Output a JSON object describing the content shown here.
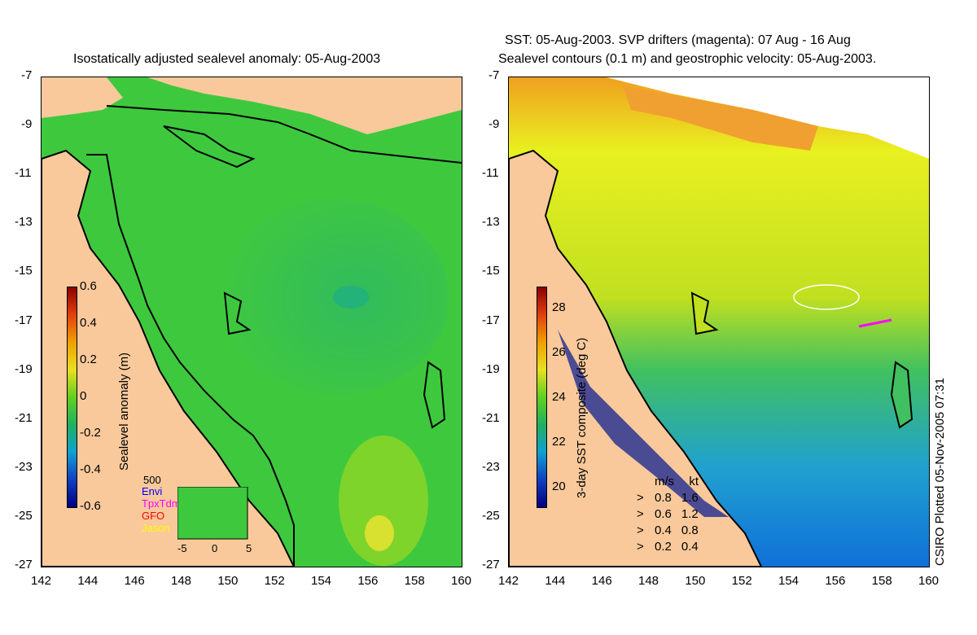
{
  "left_map": {
    "title": "Isostatically adjusted sealevel anomaly: 05-Aug-2003",
    "colorbar": {
      "label": "Sealevel anomaly (m)",
      "ticks": [
        "0.6",
        "0.4",
        "0.2",
        "0",
        "-0.2",
        "-0.4",
        "-0.6"
      ]
    },
    "inset": {
      "top_label": "500",
      "legend": [
        {
          "name": "Envi",
          "color": "#0000ff"
        },
        {
          "name": "TpxTdm",
          "color": "#ff00ff"
        },
        {
          "name": "GFO",
          "color": "#ff0000"
        },
        {
          "name": "Jason",
          "color": "#ffff00"
        }
      ],
      "x_ticks": [
        "-5",
        "0",
        "5"
      ]
    }
  },
  "right_map": {
    "title_line1": "SST: 05-Aug-2003. SVP drifters (magenta): 07 Aug - 16 Aug",
    "title_line2": "Sealevel contours (0.1 m) and geostrophic velocity: 05-Aug-2003.",
    "colorbar": {
      "label": "3-day SST composite (deg C)",
      "ticks": [
        "28",
        "26",
        "24",
        "22",
        "20"
      ]
    },
    "velocity_legend": {
      "header_ms": "m/s",
      "header_kt": "kt",
      "rows": [
        {
          "ms": "0.8",
          "kt": "1.6"
        },
        {
          "ms": "0.6",
          "kt": "1.2"
        },
        {
          "ms": "0.4",
          "kt": "0.8"
        },
        {
          "ms": "0.2",
          "kt": "0.4"
        }
      ]
    },
    "credit": "CSIRO Plotted 05-Nov-2005 07:31"
  },
  "axes": {
    "lat_ticks": [
      "-7",
      "-9",
      "-11",
      "-13",
      "-15",
      "-17",
      "-19",
      "-21",
      "-23",
      "-25",
      "-27"
    ],
    "lon_ticks": [
      "142",
      "144",
      "146",
      "148",
      "150",
      "152",
      "154",
      "156",
      "158",
      "160"
    ]
  },
  "colors": {
    "land": "#f9c99b",
    "sea_level_base": "#3cc83c",
    "sst_warm": "#e8f020",
    "sst_cool": "#1a9ad8",
    "drifter": "#ff00ff"
  }
}
